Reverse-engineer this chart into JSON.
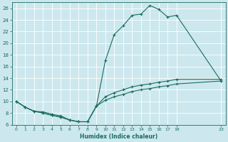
{
  "xlabel": "Humidex (Indice chaleur)",
  "background_color": "#cce8ee",
  "grid_color": "#ffffff",
  "line_color": "#1a6b5e",
  "xlim": [
    -0.5,
    23.5
  ],
  "ylim": [
    6,
    27
  ],
  "xticks": [
    0,
    1,
    2,
    3,
    4,
    5,
    6,
    7,
    8,
    9,
    10,
    11,
    12,
    13,
    14,
    15,
    16,
    17,
    18,
    23
  ],
  "yticks": [
    6,
    8,
    10,
    12,
    14,
    16,
    18,
    20,
    22,
    24,
    26
  ],
  "curve_max_x": [
    0,
    1,
    2,
    3,
    4,
    5,
    6,
    7,
    8,
    9,
    10,
    11,
    12,
    13,
    14,
    15,
    16,
    17,
    18,
    23
  ],
  "curve_max_y": [
    10,
    9,
    8.3,
    8.2,
    7.8,
    7.5,
    6.8,
    6.5,
    6.5,
    9.2,
    17.0,
    21.5,
    23.0,
    24.8,
    25.0,
    26.5,
    25.8,
    24.5,
    24.8,
    13.5
  ],
  "curve_min_x": [
    0,
    1,
    2,
    3,
    4,
    5,
    6,
    7,
    8,
    9,
    10,
    11,
    12,
    13,
    14,
    15,
    16,
    17,
    18,
    23
  ],
  "curve_min_y": [
    10,
    9,
    8.3,
    8.0,
    7.6,
    7.3,
    6.8,
    6.5,
    6.5,
    9.2,
    10.2,
    10.8,
    11.2,
    11.7,
    12.0,
    12.2,
    12.5,
    12.7,
    13.0,
    13.5
  ],
  "curve_avg_x": [
    0,
    1,
    2,
    3,
    4,
    5,
    6,
    7,
    8,
    9,
    10,
    11,
    12,
    13,
    14,
    15,
    16,
    17,
    18,
    23
  ],
  "curve_avg_y": [
    10,
    9,
    8.3,
    8.0,
    7.6,
    7.3,
    6.8,
    6.5,
    6.5,
    9.2,
    10.8,
    11.5,
    12.0,
    12.5,
    12.8,
    13.0,
    13.3,
    13.5,
    13.8,
    13.8
  ]
}
